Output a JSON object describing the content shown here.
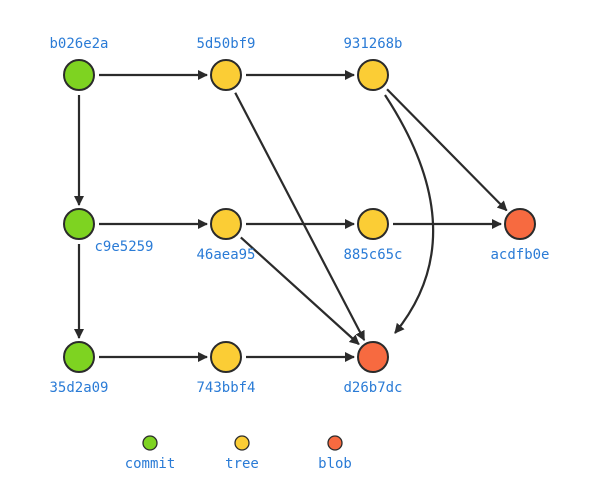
{
  "colors": {
    "commit": "#7ed321",
    "tree": "#fbcd35",
    "blob": "#f76a40",
    "label": "#2a7bd6",
    "edge": "#2b2b2b"
  },
  "nodes": [
    {
      "id": "b026e2a",
      "type": "commit"
    },
    {
      "id": "5d50bf9",
      "type": "tree"
    },
    {
      "id": "931268b",
      "type": "tree"
    },
    {
      "id": "c9e5259",
      "type": "commit"
    },
    {
      "id": "46aea95",
      "type": "tree"
    },
    {
      "id": "885c65c",
      "type": "tree"
    },
    {
      "id": "acdfb0e",
      "type": "blob"
    },
    {
      "id": "35d2a09",
      "type": "commit"
    },
    {
      "id": "743bbf4",
      "type": "tree"
    },
    {
      "id": "d26b7dc",
      "type": "blob"
    }
  ],
  "edges": [
    {
      "from": "b026e2a",
      "to": "5d50bf9"
    },
    {
      "from": "5d50bf9",
      "to": "931268b"
    },
    {
      "from": "b026e2a",
      "to": "c9e5259"
    },
    {
      "from": "c9e5259",
      "to": "46aea95"
    },
    {
      "from": "46aea95",
      "to": "885c65c"
    },
    {
      "from": "885c65c",
      "to": "acdfb0e"
    },
    {
      "from": "931268b",
      "to": "acdfb0e"
    },
    {
      "from": "931268b",
      "to": "d26b7dc",
      "curved": true
    },
    {
      "from": "5d50bf9",
      "to": "d26b7dc"
    },
    {
      "from": "46aea95",
      "to": "d26b7dc"
    },
    {
      "from": "c9e5259",
      "to": "35d2a09"
    },
    {
      "from": "35d2a09",
      "to": "743bbf4"
    },
    {
      "from": "743bbf4",
      "to": "d26b7dc"
    }
  ],
  "legend": [
    {
      "type": "commit",
      "label": "commit"
    },
    {
      "type": "tree",
      "label": "tree"
    },
    {
      "type": "blob",
      "label": "blob"
    }
  ]
}
